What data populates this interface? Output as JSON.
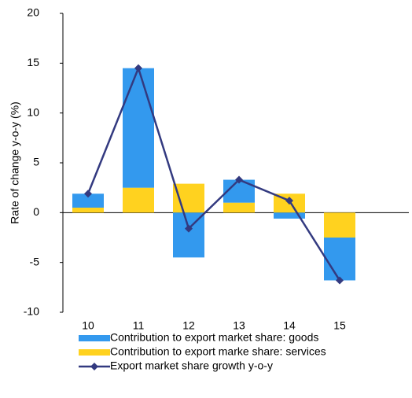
{
  "chart_data": {
    "type": "bar-line",
    "y_label": "Rate of change y-o-y (%)",
    "categories": [
      "10",
      "11",
      "12",
      "13",
      "14",
      "15"
    ],
    "series": [
      {
        "name": "Contribution to export market share: goods",
        "kind": "bar",
        "color": "#3399ee",
        "values": [
          1.4,
          12.0,
          -4.5,
          2.3,
          -0.6,
          -4.3
        ]
      },
      {
        "name": "Contribution to export marke share: services",
        "kind": "bar",
        "color": "#ffd21f",
        "values": [
          0.5,
          2.5,
          2.9,
          1.0,
          1.9,
          -2.5
        ]
      },
      {
        "name": "Export market share growth y-o-y",
        "kind": "line",
        "color": "#333a80",
        "values": [
          1.9,
          14.5,
          -1.6,
          3.3,
          1.2,
          -6.8
        ]
      }
    ],
    "ylim": [
      -10,
      20
    ],
    "yticks": [
      -10,
      -5,
      0,
      5,
      10,
      15,
      20
    ]
  }
}
